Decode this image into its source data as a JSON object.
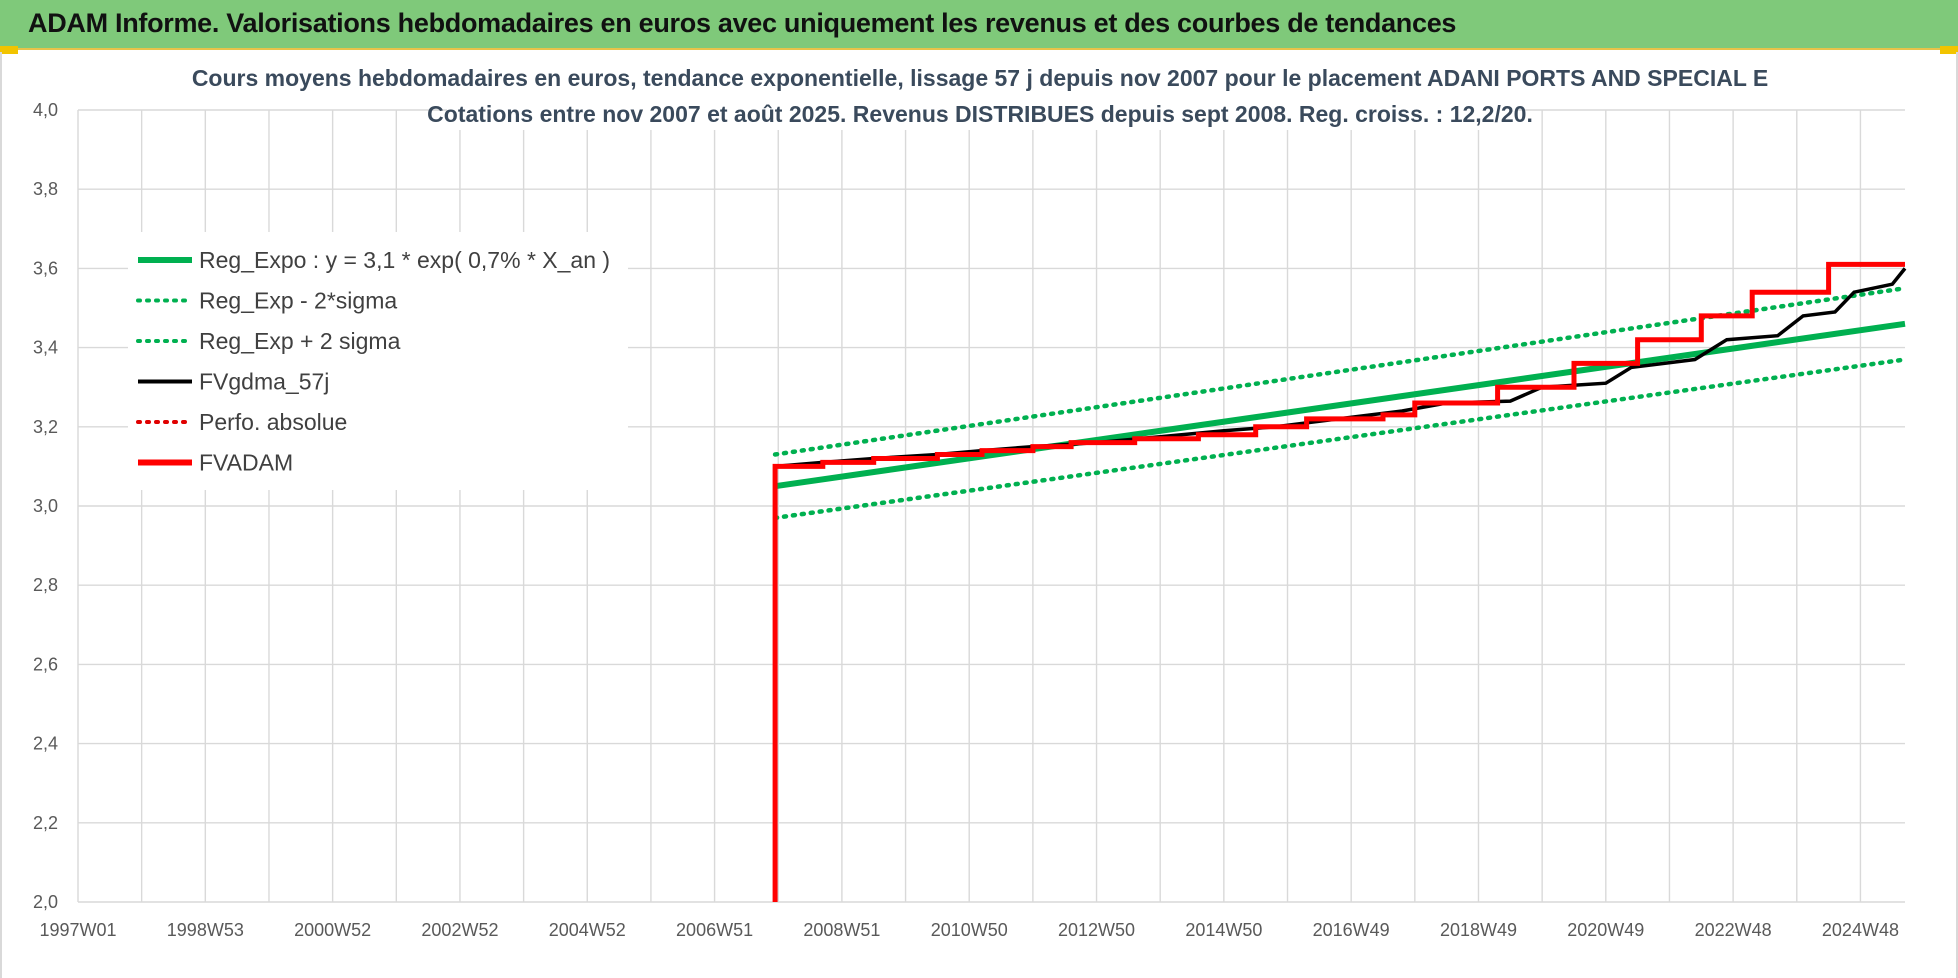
{
  "banner": {
    "title": "ADAM Informe. Valorisations hebdomadaires en euros avec uniquement les revenus et des courbes de tendances",
    "background": "#7fc97a"
  },
  "chart_data": {
    "type": "line",
    "title_line1": "Cours moyens hebdomadaires en euros, tendance exponentielle, lissage 57 j depuis nov 2007 pour le placement ADANI PORTS AND SPECIAL E",
    "title_line2": "Cotations entre nov 2007 et août 2025.  Revenus DISTRIBUES depuis sept 2008.  Reg. croiss. : 12,2/20.",
    "ylim": [
      2.0,
      4.0
    ],
    "y_ticks": [
      "2,0",
      "2,2",
      "2,4",
      "2,6",
      "2,8",
      "3,0",
      "3,2",
      "3,4",
      "3,6",
      "3,8",
      "4,0"
    ],
    "x_range": [
      1997.0,
      2025.7
    ],
    "x_tick_labels": [
      {
        "label": "1997W01",
        "year": 1997.0
      },
      {
        "label": "1998W53",
        "year": 1999.0
      },
      {
        "label": "2000W52",
        "year": 2001.0
      },
      {
        "label": "2002W52",
        "year": 2003.0
      },
      {
        "label": "2004W52",
        "year": 2005.0
      },
      {
        "label": "2006W51",
        "year": 2007.0
      },
      {
        "label": "2008W51",
        "year": 2009.0
      },
      {
        "label": "2010W50",
        "year": 2011.0
      },
      {
        "label": "2012W50",
        "year": 2013.0
      },
      {
        "label": "2014W50",
        "year": 2015.0
      },
      {
        "label": "2016W49",
        "year": 2017.0
      },
      {
        "label": "2018W49",
        "year": 2019.0
      },
      {
        "label": "2020W49",
        "year": 2021.0
      },
      {
        "label": "2022W48",
        "year": 2023.0
      },
      {
        "label": "2024W48",
        "year": 2025.0
      }
    ],
    "grid": true,
    "legend_position": "top-left",
    "series": [
      {
        "name": "Reg_Expo : y = 3,1 * exp( 0,7% *  X_an )",
        "color": "#00b050",
        "style": "solid",
        "points": [
          [
            2007.95,
            3.05
          ],
          [
            2025.7,
            3.46
          ]
        ]
      },
      {
        "name": "Reg_Exp - 2*sigma",
        "color": "#00b050",
        "style": "dotted",
        "points": [
          [
            2007.95,
            2.97
          ],
          [
            2025.7,
            3.37
          ]
        ]
      },
      {
        "name": "Reg_Exp + 2 sigma",
        "color": "#00b050",
        "style": "dotted",
        "points": [
          [
            2007.95,
            3.13
          ],
          [
            2025.7,
            3.55
          ]
        ]
      },
      {
        "name": "FVgdma_57j",
        "color": "#000000",
        "style": "solid",
        "points": [
          [
            2007.95,
            3.1
          ],
          [
            2008.7,
            3.11
          ],
          [
            2009.5,
            3.12
          ],
          [
            2010.5,
            3.13
          ],
          [
            2011.2,
            3.14
          ],
          [
            2012.0,
            3.15
          ],
          [
            2013.0,
            3.16
          ],
          [
            2014.0,
            3.175
          ],
          [
            2015.0,
            3.19
          ],
          [
            2015.8,
            3.2
          ],
          [
            2016.8,
            3.22
          ],
          [
            2017.8,
            3.24
          ],
          [
            2018.5,
            3.26
          ],
          [
            2019.5,
            3.265
          ],
          [
            2020.0,
            3.3
          ],
          [
            2021.0,
            3.31
          ],
          [
            2021.4,
            3.35
          ],
          [
            2022.4,
            3.37
          ],
          [
            2022.9,
            3.42
          ],
          [
            2023.7,
            3.43
          ],
          [
            2024.1,
            3.48
          ],
          [
            2024.6,
            3.49
          ],
          [
            2024.9,
            3.54
          ],
          [
            2025.5,
            3.56
          ],
          [
            2025.7,
            3.6
          ]
        ]
      },
      {
        "name": "Perfo. absolue",
        "color": "#e00000",
        "style": "dotted",
        "points": []
      },
      {
        "name": "FVADAM",
        "color": "#ff0000",
        "style": "solid",
        "points": [
          [
            2007.95,
            2.0
          ],
          [
            2007.95,
            3.1
          ],
          [
            2008.7,
            3.1
          ],
          [
            2008.7,
            3.11
          ],
          [
            2009.5,
            3.11
          ],
          [
            2009.5,
            3.12
          ],
          [
            2010.5,
            3.12
          ],
          [
            2010.5,
            3.13
          ],
          [
            2011.2,
            3.13
          ],
          [
            2011.2,
            3.14
          ],
          [
            2012.0,
            3.14
          ],
          [
            2012.0,
            3.15
          ],
          [
            2012.6,
            3.15
          ],
          [
            2012.6,
            3.16
          ],
          [
            2013.6,
            3.16
          ],
          [
            2013.6,
            3.17
          ],
          [
            2014.6,
            3.17
          ],
          [
            2014.6,
            3.18
          ],
          [
            2015.5,
            3.18
          ],
          [
            2015.5,
            3.2
          ],
          [
            2016.3,
            3.2
          ],
          [
            2016.3,
            3.22
          ],
          [
            2017.5,
            3.22
          ],
          [
            2017.5,
            3.23
          ],
          [
            2018.0,
            3.23
          ],
          [
            2018.0,
            3.26
          ],
          [
            2019.3,
            3.26
          ],
          [
            2019.3,
            3.3
          ],
          [
            2020.5,
            3.3
          ],
          [
            2020.5,
            3.36
          ],
          [
            2021.5,
            3.36
          ],
          [
            2021.5,
            3.42
          ],
          [
            2022.5,
            3.42
          ],
          [
            2022.5,
            3.48
          ],
          [
            2023.3,
            3.48
          ],
          [
            2023.3,
            3.54
          ],
          [
            2024.5,
            3.54
          ],
          [
            2024.5,
            3.61
          ],
          [
            2025.7,
            3.61
          ]
        ]
      }
    ]
  }
}
